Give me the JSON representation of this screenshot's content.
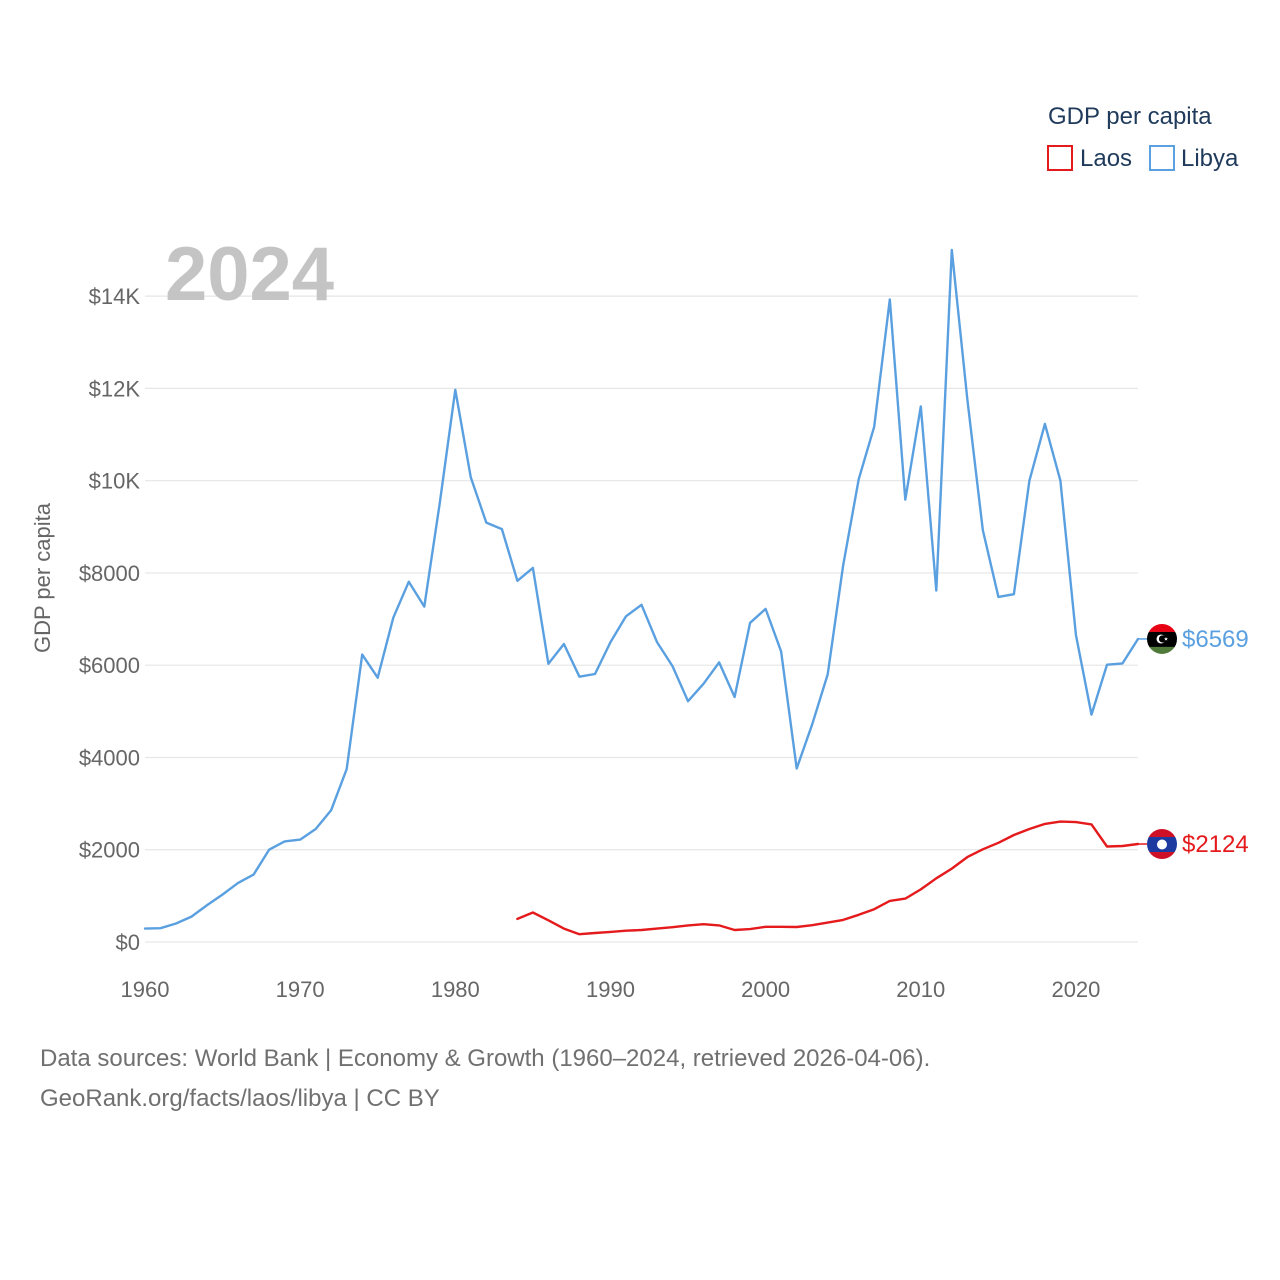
{
  "chart_data": {
    "type": "line",
    "title": "GDP per capita",
    "year_label": "2024",
    "ylabel": "GDP per capita",
    "xlabel": "",
    "xlim": [
      1960,
      2024
    ],
    "ylim": [
      0,
      15000
    ],
    "x_ticks": [
      1960,
      1970,
      1980,
      1990,
      2000,
      2010,
      2020
    ],
    "y_ticks": [
      {
        "value": 0,
        "label": "$0"
      },
      {
        "value": 2000,
        "label": "$2000"
      },
      {
        "value": 4000,
        "label": "$4000"
      },
      {
        "value": 6000,
        "label": "$6000"
      },
      {
        "value": 8000,
        "label": "$8000"
      },
      {
        "value": 10000,
        "label": "$10K"
      },
      {
        "value": 12000,
        "label": "$12K"
      },
      {
        "value": 14000,
        "label": "$14K"
      }
    ],
    "legend": {
      "title": "GDP per capita",
      "position": "top-right"
    },
    "series": [
      {
        "name": "Laos",
        "color": "#e41a1c",
        "end_label": "$2124",
        "start_year": 1984,
        "values": [
          500,
          640,
          470,
          290,
          170,
          195,
          220,
          245,
          260,
          290,
          320,
          360,
          385,
          360,
          260,
          280,
          330,
          330,
          325,
          365,
          420,
          480,
          590,
          710,
          890,
          940,
          1140,
          1380,
          1590,
          1840,
          2010,
          2150,
          2320,
          2450,
          2560,
          2610,
          2600,
          2550,
          2070,
          2080,
          2124
        ]
      },
      {
        "name": "Libya",
        "color": "#5aa0e0",
        "end_label": "$6569",
        "start_year": 1960,
        "values": [
          290,
          300,
          400,
          550,
          800,
          1030,
          1280,
          1460,
          2000,
          2180,
          2220,
          2450,
          2860,
          3750,
          6230,
          5730,
          7030,
          7810,
          7270,
          9520,
          11970,
          10070,
          9090,
          8950,
          7830,
          8110,
          6030,
          6460,
          5750,
          5810,
          6500,
          7060,
          7310,
          6500,
          5980,
          5220,
          5600,
          6060,
          5310,
          6920,
          7220,
          6300,
          3760,
          4720,
          5800,
          8170,
          10030,
          11170,
          13930,
          9590,
          11610,
          7620,
          15000,
          11770,
          8930,
          7480,
          7540,
          10000,
          11230,
          10000,
          6660,
          4930,
          6010,
          6040,
          6569
        ]
      }
    ],
    "footer_line1": "Data sources: World Bank | Economy & Growth (1960–2024, retrieved 2026-04-06).",
    "footer_line2": "GeoRank.org/facts/laos/libya | CC BY"
  }
}
